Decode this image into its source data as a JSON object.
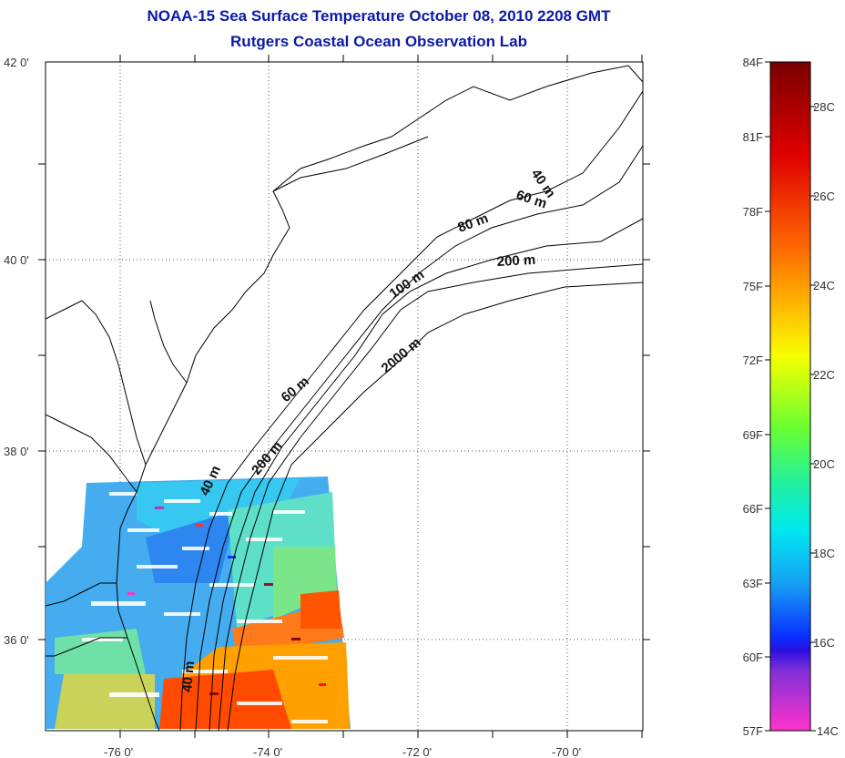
{
  "title": "NOAA-15 Sea Surface Temperature October 08, 2010 2208 GMT",
  "subtitle": "Rutgers Coastal Ocean Observation Lab",
  "colors": {
    "title": "#0a1aa8",
    "coast": "#000000",
    "grid": "#555555"
  },
  "map": {
    "lat_ticks": [
      "42 0'",
      "40 0'",
      "38 0'",
      "36 0'"
    ],
    "lon_ticks": [
      "-76 0'",
      "-74 0'",
      "-72 0'",
      "-70 0'"
    ],
    "contour_labels": [
      "40 m",
      "60 m",
      "80 m",
      "200 m",
      "100 m",
      "2000 m",
      "60 m",
      "200 m",
      "40 m",
      "40 m"
    ]
  },
  "colorbar": {
    "fahrenheit": [
      "84F",
      "81F",
      "78F",
      "75F",
      "72F",
      "69F",
      "66F",
      "63F",
      "60F",
      "57F"
    ],
    "celsius": [
      "28C",
      "26C",
      "24C",
      "22C",
      "20C",
      "18C",
      "16C",
      "14C"
    ]
  }
}
